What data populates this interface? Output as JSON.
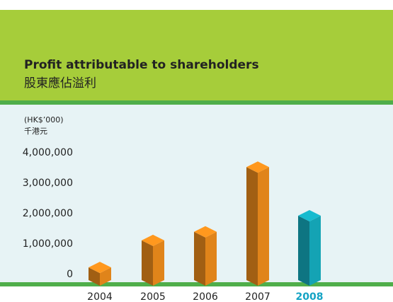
{
  "chart_data": {
    "type": "bar3d",
    "title": "Profit attributable to shareholders",
    "subtitle": "股東應佔溢利",
    "unit_label": "(HK$’000)",
    "unit_label_zh": "千港元",
    "categories": [
      "2004",
      "2005",
      "2006",
      "2007",
      "2008"
    ],
    "values": [
      230000,
      1120000,
      1400000,
      3530000,
      1930000
    ],
    "colors": [
      "#e0841a",
      "#e0841a",
      "#e0841a",
      "#e0841a",
      "#14a3b4"
    ],
    "highlight": "2008",
    "highlight_color": "#14a3c4",
    "ylim": [
      0,
      4000000
    ],
    "yticks": [
      0,
      {
        "value": 1000000,
        "label": "1,000,000"
      },
      {
        "value": 2000000,
        "label": "2,000,000"
      },
      {
        "value": 3000000,
        "label": "3,000,000"
      },
      {
        "value": 4000000,
        "label": "4,000,000"
      }
    ]
  }
}
